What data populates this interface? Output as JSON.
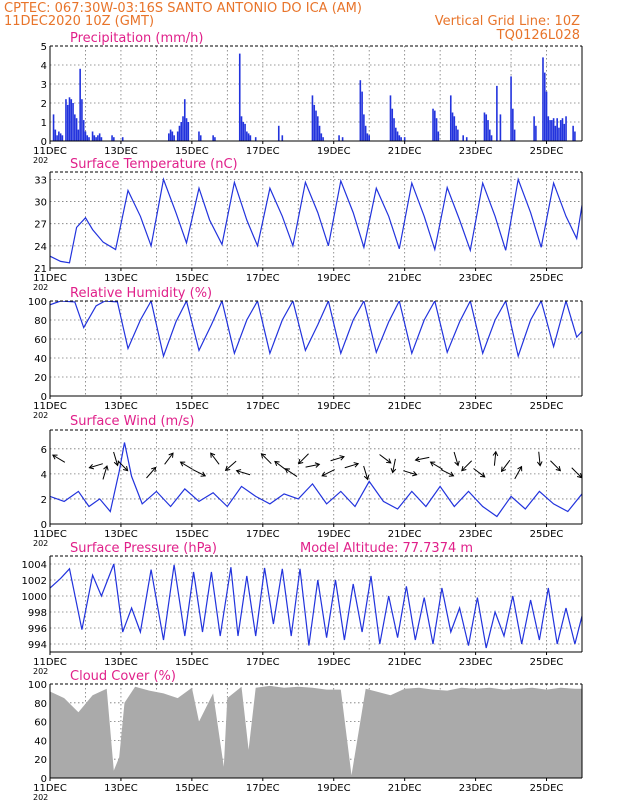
{
  "header": {
    "line1_left": "CPTEC:   067:30W-03:16S   SANTO ANTONIO DO ICA (AM)",
    "line2_left": "11DEC2020 10Z (GMT)",
    "line2_right": "Vertical Grid Line: 10Z",
    "line3_right": "TQ0126L028"
  },
  "colors": {
    "header": "#e8742a",
    "title": "#e0208a",
    "series": "#2233dd",
    "cloud": "#aaaaaa",
    "arrow": "#000000"
  },
  "x_axis": {
    "labels": [
      "11DEC",
      "13DEC",
      "15DEC",
      "17DEC",
      "19DEC",
      "21DEC",
      "23DEC",
      "25DEC"
    ],
    "label_days": [
      0,
      2,
      4,
      6,
      8,
      10,
      12,
      14
    ],
    "year_fragment": "202",
    "range_days": [
      0,
      15
    ]
  },
  "chart_data": [
    {
      "id": "precip",
      "type": "bar",
      "title": "Precipitation (mm/h)",
      "ylim": [
        0,
        5
      ],
      "yticks": [
        0,
        1,
        2,
        3,
        4,
        5
      ],
      "grid": true,
      "day_offsets": [
        0.1,
        0.15,
        0.2,
        0.25,
        0.3,
        0.35,
        0.45,
        0.5,
        0.55,
        0.6,
        0.65,
        0.7,
        0.75,
        0.8,
        0.85,
        0.9,
        0.95,
        1.0,
        1.05,
        1.1,
        1.2,
        1.25,
        1.3,
        1.35,
        1.4,
        1.45,
        1.75,
        1.8,
        2.05,
        3.35,
        3.4,
        3.45,
        3.5,
        3.6,
        3.65,
        3.7,
        3.75,
        3.8,
        3.85,
        3.9,
        4.2,
        4.25,
        4.6,
        4.65,
        5.35,
        5.4,
        5.45,
        5.5,
        5.55,
        5.6,
        5.65,
        5.8,
        6.45,
        6.55,
        7.4,
        7.45,
        7.5,
        7.55,
        7.6,
        7.65,
        7.7,
        8.15,
        8.25,
        8.75,
        8.8,
        8.85,
        8.9,
        8.95,
        9.0,
        9.6,
        9.65,
        9.7,
        9.75,
        9.8,
        9.85,
        9.9,
        10.0,
        10.8,
        10.85,
        10.9,
        10.95,
        11.3,
        11.35,
        11.4,
        11.45,
        11.5,
        11.65,
        11.75,
        12.25,
        12.3,
        12.35,
        12.4,
        12.45,
        12.6,
        12.7,
        13.0,
        13.05,
        13.1,
        13.65,
        13.7,
        13.9,
        13.95,
        14.0,
        14.05,
        14.1,
        14.15,
        14.2,
        14.25,
        14.3,
        14.35,
        14.4,
        14.45,
        14.5,
        14.55,
        14.75,
        14.8
      ],
      "values": [
        1.4,
        0.6,
        0.3,
        0.5,
        0.4,
        0.3,
        2.2,
        1.9,
        2.3,
        2.2,
        2.0,
        1.4,
        1.2,
        0.6,
        3.8,
        2.2,
        1.1,
        0.5,
        0.3,
        0.2,
        0.5,
        0.3,
        0.2,
        0.3,
        0.4,
        0.2,
        0.3,
        0.2,
        0.2,
        0.4,
        0.6,
        0.5,
        0.3,
        0.5,
        0.8,
        1.0,
        1.3,
        2.2,
        1.2,
        1.0,
        0.5,
        0.3,
        0.3,
        0.2,
        4.6,
        1.3,
        1.0,
        0.9,
        0.5,
        0.4,
        0.3,
        0.2,
        0.8,
        0.3,
        2.4,
        1.9,
        1.6,
        1.3,
        0.8,
        0.4,
        0.2,
        0.3,
        0.2,
        3.2,
        2.6,
        1.4,
        0.8,
        0.4,
        0.3,
        2.4,
        1.7,
        1.2,
        0.7,
        0.5,
        0.3,
        0.2,
        0.2,
        1.7,
        1.6,
        1.2,
        0.5,
        2.4,
        1.5,
        1.3,
        0.8,
        0.6,
        0.3,
        0.2,
        1.5,
        1.4,
        1.1,
        0.6,
        0.3,
        2.9,
        1.4,
        3.4,
        1.7,
        0.6,
        1.3,
        0.8,
        4.4,
        3.6,
        2.6,
        1.3,
        1.1,
        1.1,
        1.2,
        0.8,
        1.2,
        0.7,
        1.1,
        1.2,
        0.9,
        1.3,
        0.8,
        0.5,
        1.3,
        1.1
      ]
    },
    {
      "id": "temp",
      "type": "line",
      "title": "Surface Temperature (nC)",
      "ylim": [
        21,
        34
      ],
      "yticks": [
        21,
        24,
        27,
        30,
        33
      ],
      "grid": true,
      "x": [
        0,
        0.3,
        0.55,
        0.75,
        1.0,
        1.2,
        1.5,
        1.85,
        2.2,
        2.55,
        2.85,
        3.2,
        3.55,
        3.85,
        4.2,
        4.5,
        4.85,
        5.2,
        5.55,
        5.85,
        6.2,
        6.55,
        6.85,
        7.2,
        7.55,
        7.85,
        8.2,
        8.55,
        8.85,
        9.2,
        9.55,
        9.85,
        10.2,
        10.55,
        10.85,
        11.2,
        11.55,
        11.85,
        12.2,
        12.55,
        12.85,
        13.2,
        13.55,
        13.85,
        14.2,
        14.55,
        14.85,
        15.0
      ],
      "values": [
        22.6,
        21.9,
        21.7,
        26.5,
        27.8,
        26.2,
        24.5,
        23.5,
        31.5,
        28.0,
        24.0,
        33.0,
        28.5,
        24.4,
        31.8,
        27.5,
        24.2,
        32.6,
        27.5,
        24.0,
        31.8,
        28.0,
        24.0,
        32.6,
        28.5,
        24.0,
        32.8,
        28.5,
        23.8,
        31.8,
        28.0,
        23.6,
        32.5,
        28.0,
        23.5,
        31.9,
        27.5,
        23.4,
        32.5,
        28.0,
        23.4,
        33.0,
        28.5,
        23.8,
        32.5,
        28.0,
        25.0,
        29.5
      ]
    },
    {
      "id": "rh",
      "type": "line",
      "title": "Relative Humidity (%)",
      "ylim": [
        0,
        100
      ],
      "yticks": [
        0,
        20,
        40,
        60,
        80,
        100
      ],
      "grid": true,
      "x": [
        0,
        0.3,
        0.7,
        0.95,
        1.3,
        1.55,
        1.9,
        2.2,
        2.55,
        2.85,
        3.2,
        3.55,
        3.85,
        4.2,
        4.55,
        4.85,
        5.2,
        5.55,
        5.85,
        6.2,
        6.55,
        6.85,
        7.2,
        7.55,
        7.85,
        8.2,
        8.55,
        8.85,
        9.2,
        9.55,
        9.85,
        10.2,
        10.55,
        10.85,
        11.2,
        11.55,
        11.85,
        12.2,
        12.55,
        12.85,
        13.2,
        13.55,
        13.85,
        14.2,
        14.55,
        14.85,
        15.0
      ],
      "values": [
        96,
        100,
        99,
        72,
        95,
        100,
        99,
        50,
        80,
        100,
        42,
        78,
        100,
        48,
        75,
        100,
        45,
        80,
        100,
        45,
        80,
        100,
        48,
        75,
        100,
        45,
        80,
        100,
        46,
        78,
        100,
        45,
        80,
        100,
        46,
        78,
        100,
        45,
        80,
        100,
        42,
        80,
        100,
        52,
        100,
        62,
        68
      ]
    },
    {
      "id": "wind",
      "type": "line",
      "title": "Surface Wind (m/s)",
      "ylim": [
        0,
        7.5
      ],
      "yticks": [
        0,
        2,
        4,
        6
      ],
      "grid": true,
      "x": [
        0,
        0.4,
        0.8,
        1.1,
        1.4,
        1.7,
        1.95,
        2.1,
        2.3,
        2.6,
        3.0,
        3.4,
        3.8,
        4.2,
        4.6,
        5.0,
        5.4,
        5.8,
        6.2,
        6.6,
        7.0,
        7.4,
        7.8,
        8.2,
        8.6,
        9.0,
        9.4,
        9.8,
        10.2,
        10.6,
        11.0,
        11.4,
        11.8,
        12.2,
        12.6,
        13.0,
        13.4,
        13.8,
        14.2,
        14.6,
        15.0
      ],
      "values": [
        2.2,
        1.8,
        2.6,
        1.4,
        2.0,
        1.0,
        4.2,
        6.5,
        3.8,
        1.6,
        2.6,
        1.4,
        2.8,
        1.8,
        2.5,
        1.4,
        3.0,
        2.2,
        1.6,
        2.4,
        2.0,
        3.2,
        1.6,
        2.6,
        1.4,
        3.4,
        1.8,
        1.2,
        2.6,
        1.4,
        3.0,
        1.4,
        2.6,
        1.4,
        0.6,
        2.2,
        1.2,
        2.6,
        1.6,
        1.0,
        2.4
      ],
      "arrows": [
        {
          "day": 0.25,
          "dx": -1,
          "dy": -0.6
        },
        {
          "day": 1.3,
          "dx": -1,
          "dy": 0.3
        },
        {
          "day": 1.55,
          "dx": 0.3,
          "dy": -1
        },
        {
          "day": 1.85,
          "dx": 0.3,
          "dy": 1
        },
        {
          "day": 2.05,
          "dx": 1,
          "dy": 1
        },
        {
          "day": 2.85,
          "dx": 0.7,
          "dy": -0.8
        },
        {
          "day": 3.35,
          "dx": 0.6,
          "dy": -0.8
        },
        {
          "day": 3.85,
          "dx": -1,
          "dy": -0.6
        },
        {
          "day": 4.2,
          "dx": 1,
          "dy": 0.5
        },
        {
          "day": 4.65,
          "dx": -0.6,
          "dy": -0.8
        },
        {
          "day": 5.1,
          "dx": -0.8,
          "dy": 0.7
        },
        {
          "day": 5.45,
          "dx": -1,
          "dy": -0.3
        },
        {
          "day": 6.1,
          "dx": -0.7,
          "dy": -0.7
        },
        {
          "day": 6.5,
          "dx": -0.8,
          "dy": -0.6
        },
        {
          "day": 6.8,
          "dx": -0.9,
          "dy": -0.6
        },
        {
          "day": 7.15,
          "dx": -0.7,
          "dy": 0.7
        },
        {
          "day": 7.4,
          "dx": 1,
          "dy": -0.2
        },
        {
          "day": 7.85,
          "dx": -1,
          "dy": 0.5
        },
        {
          "day": 8.1,
          "dx": 1,
          "dy": -0.3
        },
        {
          "day": 8.5,
          "dx": 1,
          "dy": -0.3
        },
        {
          "day": 8.9,
          "dx": 0.3,
          "dy": 1
        },
        {
          "day": 9.45,
          "dx": 0.8,
          "dy": 0.6
        },
        {
          "day": 9.7,
          "dx": -0.2,
          "dy": 1
        },
        {
          "day": 10.15,
          "dx": 1,
          "dy": 0.3
        },
        {
          "day": 10.5,
          "dx": -1,
          "dy": 0.2
        },
        {
          "day": 10.9,
          "dx": -1,
          "dy": -0.6
        },
        {
          "day": 11.2,
          "dx": 1,
          "dy": 0.5
        },
        {
          "day": 11.45,
          "dx": 0.3,
          "dy": 1
        },
        {
          "day": 11.75,
          "dx": -0.7,
          "dy": 0.7
        },
        {
          "day": 12.1,
          "dx": 0.8,
          "dy": 0.6
        },
        {
          "day": 12.55,
          "dx": 0.1,
          "dy": -1
        },
        {
          "day": 12.85,
          "dx": -0.6,
          "dy": 0.8
        },
        {
          "day": 13.2,
          "dx": 0.5,
          "dy": -0.9
        },
        {
          "day": 13.8,
          "dx": 0.1,
          "dy": 1
        },
        {
          "day": 14.25,
          "dx": 0.7,
          "dy": 0.7
        },
        {
          "day": 14.85,
          "dx": 0.7,
          "dy": 0.7
        }
      ]
    },
    {
      "id": "pressure",
      "type": "line",
      "title": "Surface Pressure (hPa)",
      "subtitle": "Model Altitude: 77.7374 m",
      "ylim": [
        993,
        1005
      ],
      "yticks": [
        994,
        996,
        998,
        1000,
        1002,
        1004
      ],
      "grid": true,
      "x": [
        0,
        0.3,
        0.55,
        0.9,
        1.2,
        1.45,
        1.8,
        2.05,
        2.3,
        2.55,
        2.85,
        3.2,
        3.5,
        3.8,
        4.05,
        4.3,
        4.55,
        4.8,
        5.1,
        5.3,
        5.55,
        5.8,
        6.05,
        6.3,
        6.55,
        6.8,
        7.05,
        7.3,
        7.55,
        7.8,
        8.05,
        8.3,
        8.55,
        8.8,
        9.05,
        9.3,
        9.55,
        9.8,
        10.05,
        10.3,
        10.55,
        10.8,
        11.05,
        11.3,
        11.55,
        11.8,
        12.05,
        12.3,
        12.55,
        12.8,
        13.05,
        13.3,
        13.55,
        13.8,
        14.05,
        14.3,
        14.55,
        14.8,
        15.0
      ],
      "values": [
        1001.0,
        1002.2,
        1003.4,
        995.8,
        1002.6,
        1000.0,
        1004.0,
        995.5,
        998.5,
        995.5,
        1003.3,
        994.5,
        1003.9,
        995.0,
        1003.0,
        995.5,
        1003.0,
        995.0,
        1003.6,
        995.0,
        1002.5,
        995.0,
        1003.5,
        996.5,
        1003.4,
        995.0,
        1003.4,
        993.8,
        1002.0,
        994.8,
        1002.0,
        994.5,
        1001.5,
        995.5,
        1002.5,
        994.0,
        1000.0,
        994.8,
        1001.2,
        994.5,
        999.8,
        994.0,
        1001.0,
        995.5,
        998.5,
        993.8,
        999.8,
        993.5,
        998.0,
        995.0,
        1000.0,
        994.0,
        999.5,
        994.5,
        1001.0,
        994.0,
        998.5,
        994.0,
        997.5
      ]
    },
    {
      "id": "cloud",
      "type": "area",
      "title": "Cloud Cover (%)",
      "ylim": [
        0,
        100
      ],
      "yticks": [
        0,
        20,
        40,
        60,
        80,
        100
      ],
      "grid": true,
      "x": [
        0,
        0.4,
        0.8,
        1.2,
        1.6,
        1.8,
        1.95,
        2.1,
        2.4,
        2.8,
        3.2,
        3.6,
        4.0,
        4.2,
        4.6,
        4.9,
        5.0,
        5.4,
        5.6,
        5.8,
        6.2,
        6.6,
        7.0,
        7.4,
        7.8,
        8.2,
        8.5,
        8.9,
        9.2,
        9.6,
        10.0,
        10.4,
        10.8,
        11.2,
        11.6,
        12.0,
        12.4,
        12.8,
        13.2,
        13.6,
        14.0,
        14.4,
        14.8,
        15.0
      ],
      "values": [
        92,
        85,
        70,
        88,
        95,
        8,
        22,
        80,
        97,
        93,
        90,
        85,
        96,
        60,
        90,
        12,
        85,
        97,
        30,
        96,
        98,
        96,
        97,
        96,
        94,
        94,
        3,
        95,
        92,
        88,
        95,
        96,
        94,
        93,
        96,
        95,
        96,
        94,
        95,
        96,
        94,
        96,
        95,
        95
      ]
    }
  ]
}
